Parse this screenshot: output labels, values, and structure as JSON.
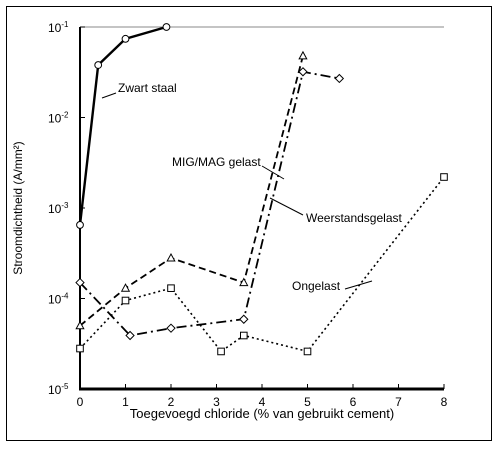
{
  "chart_data": {
    "type": "line",
    "xlabel": "Toegevoegd chloride (% van gebruikt cement)",
    "ylabel": "Stroomdichtheid (A/mm²)",
    "xlim": [
      0,
      8
    ],
    "ylim": [
      1e-05,
      0.1
    ],
    "yscale": "log",
    "xticks": [
      "0",
      "1",
      "2",
      "3",
      "4",
      "5",
      "6",
      "7",
      "8"
    ],
    "yticks": [
      {
        "base": "10",
        "exp": "-5"
      },
      {
        "base": "10",
        "exp": "-4"
      },
      {
        "base": "10",
        "exp": "-3"
      },
      {
        "base": "10",
        "exp": "-2"
      },
      {
        "base": "10",
        "exp": "-1"
      }
    ],
    "grid": false,
    "series": [
      {
        "name": "Zwart staal",
        "marker": "circle",
        "linestyle": "solid",
        "points": [
          [
            0,
            0.00065
          ],
          [
            0.4,
            0.038
          ],
          [
            1.0,
            0.074
          ],
          [
            1.9,
            0.1
          ]
        ]
      },
      {
        "name": "MIG/MAG gelast",
        "marker": "triangle",
        "linestyle": "dashed",
        "points": [
          [
            0,
            5e-05
          ],
          [
            1.0,
            0.00013
          ],
          [
            2.0,
            0.00028
          ],
          [
            3.6,
            0.00015
          ],
          [
            4.9,
            0.048
          ]
        ]
      },
      {
        "name": "Weerstandsgelast",
        "marker": "diamond",
        "linestyle": "dashdot",
        "points": [
          [
            0,
            0.00015
          ],
          [
            1.1,
            3.9e-05
          ],
          [
            2.0,
            4.7e-05
          ],
          [
            3.6,
            5.9e-05
          ],
          [
            4.9,
            0.032
          ],
          [
            5.7,
            0.027
          ]
        ]
      },
      {
        "name": "Ongelast",
        "marker": "square",
        "linestyle": "dotted",
        "points": [
          [
            0,
            2.8e-05
          ],
          [
            1.0,
            9.5e-05
          ],
          [
            2.0,
            0.00013
          ],
          [
            3.1,
            2.6e-05
          ],
          [
            3.6,
            3.9e-05
          ],
          [
            5.0,
            2.6e-05
          ],
          [
            8.0,
            0.0022
          ]
        ]
      }
    ],
    "annotations": [
      {
        "text": "Zwart staal",
        "series": 0
      },
      {
        "text": "MIG/MAG gelast",
        "series": 1
      },
      {
        "text": "Weerstandsgelast",
        "series": 2
      },
      {
        "text": "Ongelast",
        "series": 3
      }
    ]
  }
}
